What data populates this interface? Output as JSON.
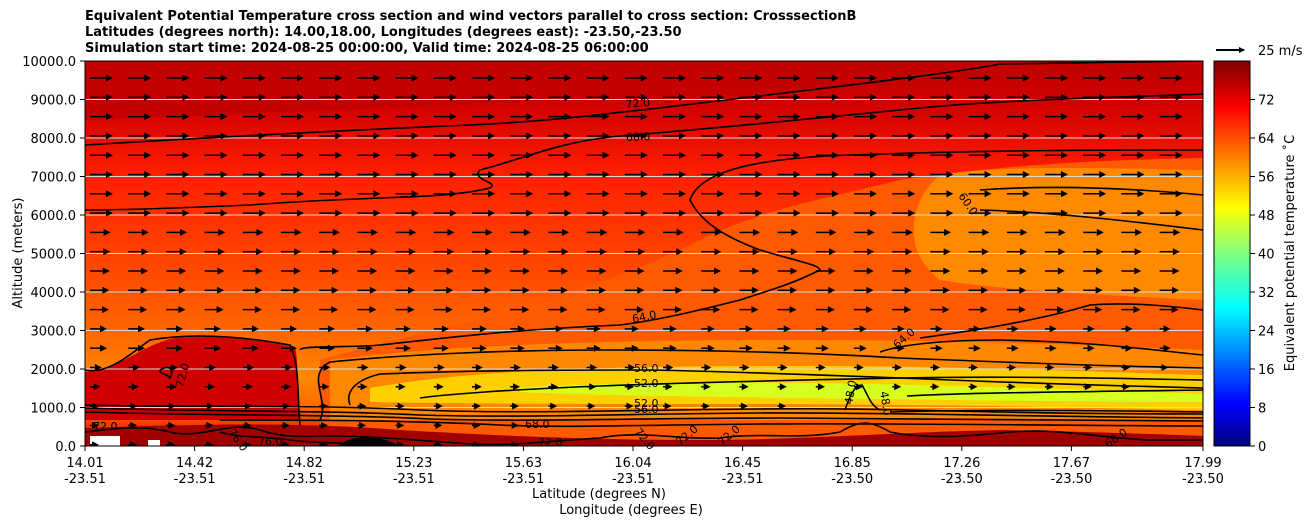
{
  "chart_data": {
    "type": "heatmap",
    "title": [
      "Equivalent Potential Temperature cross section and wind vectors parallel to cross section: CrosssectionB",
      "Latitudes (degrees north): 14.00,18.00, Longitudes (degrees east): -23.50,-23.50",
      "Simulation start time: 2024-08-25 00:00:00, Valid time: 2024-08-25 06:00:00"
    ],
    "xlabel": "Latitude (degrees N)",
    "xlabel2": "Longitude (degrees E)",
    "ylabel": "Altitude (meters)",
    "ylim": [
      0,
      10000
    ],
    "x_ticks": [
      {
        "lat": "14.01",
        "lon": "-23.51"
      },
      {
        "lat": "14.42",
        "lon": "-23.51"
      },
      {
        "lat": "14.82",
        "lon": "-23.51"
      },
      {
        "lat": "15.23",
        "lon": "-23.51"
      },
      {
        "lat": "15.63",
        "lon": "-23.51"
      },
      {
        "lat": "16.04",
        "lon": "-23.51"
      },
      {
        "lat": "16.45",
        "lon": "-23.51"
      },
      {
        "lat": "16.85",
        "lon": "-23.50"
      },
      {
        "lat": "17.26",
        "lon": "-23.50"
      },
      {
        "lat": "17.67",
        "lon": "-23.50"
      },
      {
        "lat": "17.99",
        "lon": "-23.50"
      }
    ],
    "y_ticks": [
      "0.0",
      "1000.0",
      "2000.0",
      "3000.0",
      "4000.0",
      "5000.0",
      "6000.0",
      "7000.0",
      "8000.0",
      "9000.0",
      "10000.0"
    ],
    "y_tick_values": [
      0,
      1000,
      2000,
      3000,
      4000,
      5000,
      6000,
      7000,
      8000,
      9000,
      10000
    ],
    "colorbar": {
      "label": "Equivalent potential temperature $^\\circ$C",
      "label_text": "Equivalent potential temperature ˚C",
      "range": [
        0,
        80
      ],
      "ticks": [
        "0",
        "8",
        "16",
        "24",
        "32",
        "40",
        "48",
        "56",
        "64",
        "72"
      ],
      "tick_values": [
        0,
        8,
        16,
        24,
        32,
        40,
        48,
        56,
        64,
        72
      ]
    },
    "quiver_key": "25 m/s",
    "contour_labels": [
      "72.0",
      "68.0",
      "60.0",
      "64.0",
      "64.0",
      "56.0",
      "52.0",
      "52.0",
      "56.0",
      "72.0",
      "68.0",
      "72.0",
      "76.0",
      "76.0",
      "72.0",
      "72.0",
      "72.0",
      "72.0",
      "48.0",
      "48.0",
      "68.0"
    ],
    "grid": "horizontal"
  }
}
